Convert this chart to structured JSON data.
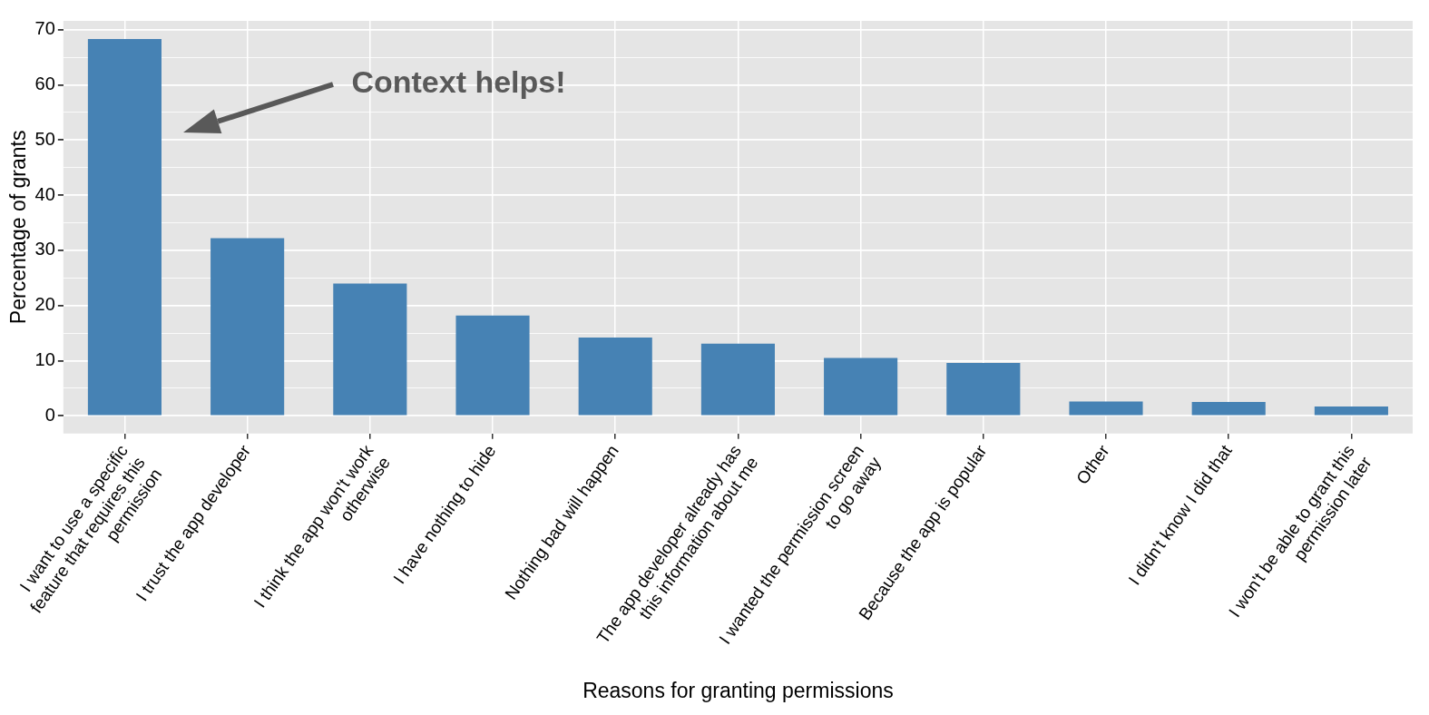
{
  "chart_data": {
    "type": "bar",
    "xlabel": "Reasons for granting permissions",
    "ylabel": "Percentage of grants",
    "categories": [
      "I want to use a specific feature that requires this permission",
      "I trust the app developer",
      "I think the app won't work otherwise",
      "I have nothing to hide",
      "Nothing bad will happen",
      "The app developer already has this information about me",
      "I wanted the permission screen to go away",
      "Because the app is popular",
      "Other",
      "I didn't know I did that",
      "I won't be able to grant this permission later"
    ],
    "values": [
      68.3,
      32.2,
      24.0,
      18.2,
      14.2,
      13.1,
      10.5,
      9.6,
      2.6,
      2.5,
      1.7
    ],
    "color": "#4682b4",
    "ylim": [
      -3.2,
      71.6
    ],
    "yticks": [
      0,
      {
        "value": 5,
        "label": null
      },
      10,
      {
        "value": 15,
        "label": null
      },
      20,
      {
        "value": 25,
        "label": null
      },
      30,
      {
        "value": 35,
        "label": null
      },
      40,
      {
        "value": 45,
        "label": null
      },
      50,
      {
        "value": 55,
        "label": null
      },
      60,
      {
        "value": 65,
        "label": null
      },
      70
    ],
    "grid": true,
    "annotations": [
      "Context helps!"
    ]
  }
}
